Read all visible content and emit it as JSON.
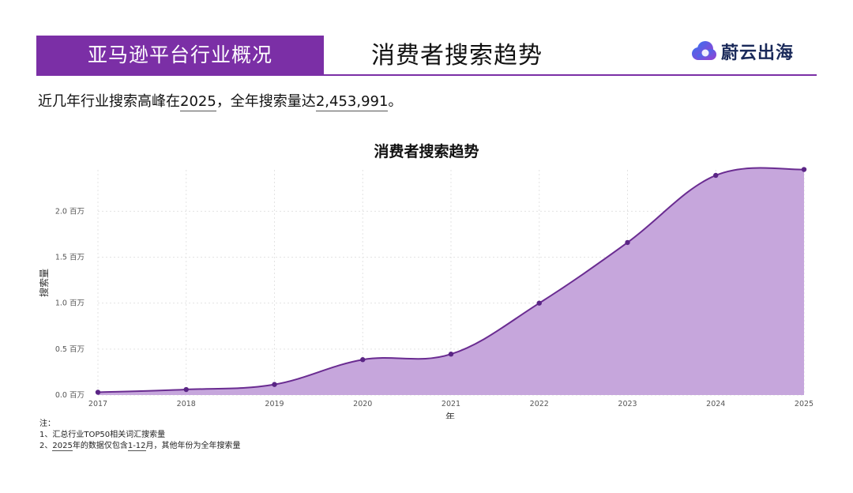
{
  "header": {
    "section_label": "亚马逊平台行业概况",
    "title": "消费者搜索趋势",
    "brand_name": "蔚云出海"
  },
  "summary": {
    "prefix": "近几年行业搜索高峰在",
    "peak_year": "2025",
    "middle": "，全年搜索量达",
    "peak_value": "2,453,991",
    "suffix": "。"
  },
  "colors": {
    "brand_purple": "#7b2fa6",
    "line": "#6a2c91",
    "area_fill": "#c6a6dc",
    "point": "#5a2585"
  },
  "chart_data": {
    "type": "area",
    "title": "消费者搜索趋势",
    "xlabel": "年",
    "ylabel": "搜索量",
    "x": [
      "2017",
      "2018",
      "2019",
      "2020",
      "2021",
      "2022",
      "2023",
      "2024",
      "2025"
    ],
    "series": [
      {
        "values": [
          30000,
          60000,
          115000,
          385000,
          445000,
          1000000,
          1660000,
          2390000,
          2453991
        ]
      }
    ],
    "yticks": [
      {
        "value": 0,
        "label": "0.0 百万"
      },
      {
        "value": 500000,
        "label": "0.5 百万"
      },
      {
        "value": 1000000,
        "label": "1.0 百万"
      },
      {
        "value": 1500000,
        "label": "1.5 百万"
      },
      {
        "value": 2000000,
        "label": "2.0 百万"
      }
    ],
    "ylim": [
      0,
      2450000
    ],
    "grid": true,
    "legend": "none"
  },
  "notes": {
    "heading": "注：",
    "line1": "1、汇总行业TOP50相关词汇搜索量",
    "line2_prefix": "2、",
    "line2_year": "2025",
    "line2_mid": "年的数据仅包含",
    "line2_range": "1-12",
    "line2_suffix": "月，其他年份为全年搜索量"
  }
}
